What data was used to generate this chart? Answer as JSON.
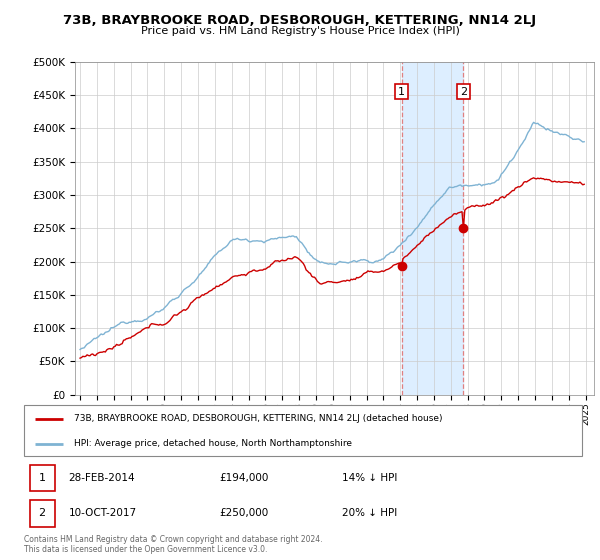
{
  "title": "73B, BRAYBROOKE ROAD, DESBOROUGH, KETTERING, NN14 2LJ",
  "subtitle": "Price paid vs. HM Land Registry's House Price Index (HPI)",
  "legend_line1": "73B, BRAYBROOKE ROAD, DESBOROUGH, KETTERING, NN14 2LJ (detached house)",
  "legend_line2": "HPI: Average price, detached house, North Northamptonshire",
  "table_row1": [
    "1",
    "28-FEB-2014",
    "£194,000",
    "14% ↓ HPI"
  ],
  "table_row2": [
    "2",
    "10-OCT-2017",
    "£250,000",
    "20% ↓ HPI"
  ],
  "footnote": "Contains HM Land Registry data © Crown copyright and database right 2024.\nThis data is licensed under the Open Government Licence v3.0.",
  "hpi_color": "#7fb3d3",
  "price_color": "#cc0000",
  "highlight_color": "#ddeeff",
  "ylim": [
    0,
    500000
  ],
  "yticks": [
    0,
    50000,
    100000,
    150000,
    200000,
    250000,
    300000,
    350000,
    400000,
    450000,
    500000
  ],
  "start_year": 1995,
  "end_year": 2025
}
